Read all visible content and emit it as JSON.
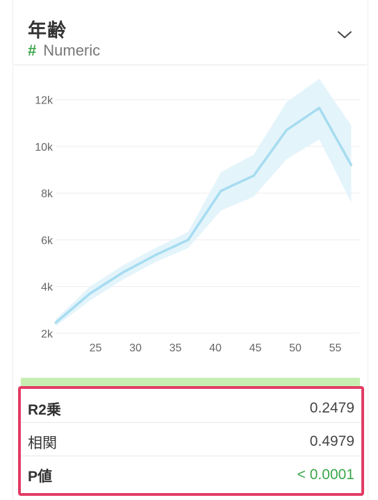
{
  "header": {
    "title": "年齢",
    "type_icon": "#",
    "type_label": "Numeric",
    "expand_icon": "chevron-down-icon"
  },
  "colors": {
    "line": "#a6dcf0",
    "band": "#e4f4fb",
    "accent_green": "#3aa64a",
    "highlight_border": "#e23c64",
    "strip": "#c7eeb1"
  },
  "chart_data": {
    "type": "line",
    "title": "",
    "xlabel": "",
    "ylabel": "",
    "x_ticks": [
      25,
      30,
      35,
      40,
      45,
      50,
      55
    ],
    "y_ticks": [
      2000,
      4000,
      6000,
      8000,
      10000,
      12000
    ],
    "y_tick_labels": [
      "2k",
      "4k",
      "6k",
      "8k",
      "10k",
      "12k"
    ],
    "xlim": [
      20,
      58
    ],
    "ylim": [
      1700,
      13000
    ],
    "grid": "horizontal",
    "legend": "none",
    "series": [
      {
        "x": [
          20,
          24.3,
          28.4,
          32.5,
          36.6,
          40.7,
          44.8,
          48.9,
          53,
          57
        ],
        "values": [
          2450,
          3700,
          4600,
          5350,
          6000,
          8100,
          8750,
          10700,
          11650,
          9200
        ],
        "lower": [
          2300,
          3400,
          4300,
          5050,
          5650,
          7250,
          7850,
          9450,
          10300,
          7600
        ],
        "upper": [
          2600,
          4000,
          4900,
          5650,
          6350,
          8900,
          9650,
          11900,
          12900,
          10900
        ]
      }
    ]
  },
  "stats": [
    {
      "label": "R2乗",
      "value": "0.2479",
      "bold": true,
      "green": false
    },
    {
      "label": "相関",
      "value": "0.4979",
      "bold": false,
      "green": false
    },
    {
      "label": "P値",
      "value": "< 0.0001",
      "bold": true,
      "green": true
    }
  ]
}
